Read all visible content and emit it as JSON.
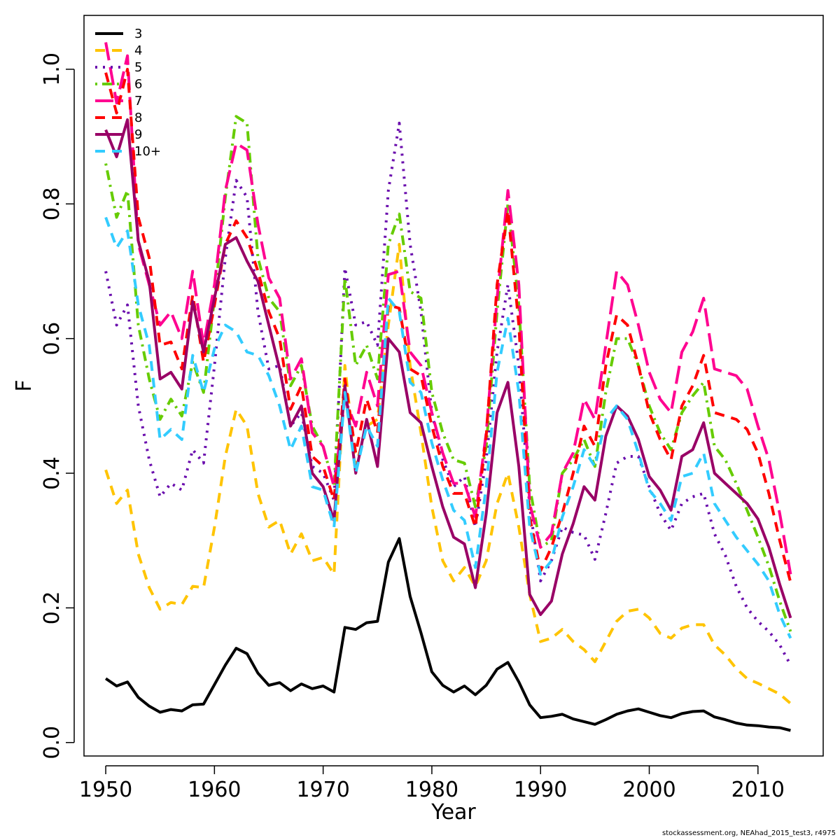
{
  "chart_data": {
    "type": "line",
    "xlabel": "Year",
    "ylabel": "F",
    "xlim": [
      1948,
      2016
    ],
    "ylim": [
      -0.02,
      1.08
    ],
    "xticks": [
      1950,
      1960,
      1970,
      1980,
      1990,
      2000,
      2010
    ],
    "yticks": [
      0.0,
      0.2,
      0.4,
      0.6,
      0.8,
      1.0
    ],
    "xtick_labels": [
      "1950",
      "1960",
      "1970",
      "1980",
      "1990",
      "2000",
      "2010"
    ],
    "ytick_labels": [
      "0.0",
      "0.2",
      "0.4",
      "0.6",
      "0.8",
      "1.0"
    ],
    "grid": false,
    "legend_position": "top-left",
    "x": [
      1950,
      1951,
      1952,
      1953,
      1954,
      1955,
      1956,
      1957,
      1958,
      1959,
      1960,
      1961,
      1962,
      1963,
      1964,
      1965,
      1966,
      1967,
      1968,
      1969,
      1970,
      1971,
      1972,
      1973,
      1974,
      1975,
      1976,
      1977,
      1978,
      1979,
      1980,
      1981,
      1982,
      1983,
      1984,
      1985,
      1986,
      1987,
      1988,
      1989,
      1990,
      1991,
      1992,
      1993,
      1994,
      1995,
      1996,
      1997,
      1998,
      1999,
      2000,
      2001,
      2002,
      2003,
      2004,
      2005,
      2006,
      2007,
      2008,
      2009,
      2010,
      2011,
      2012,
      2013
    ],
    "series": [
      {
        "name": "3",
        "color": "#000000",
        "dash": "solid",
        "values": [
          0.095,
          0.084,
          0.09,
          0.067,
          0.054,
          0.045,
          0.049,
          0.047,
          0.056,
          0.057,
          0.086,
          0.115,
          0.14,
          0.132,
          0.103,
          0.085,
          0.089,
          0.077,
          0.087,
          0.08,
          0.084,
          0.075,
          0.171,
          0.168,
          0.178,
          0.18,
          0.268,
          0.303,
          0.217,
          0.163,
          0.105,
          0.085,
          0.075,
          0.084,
          0.071,
          0.085,
          0.109,
          0.119,
          0.09,
          0.056,
          0.037,
          0.039,
          0.042,
          0.035,
          0.031,
          0.027,
          0.034,
          0.042,
          0.047,
          0.05,
          0.045,
          0.04,
          0.037,
          0.043,
          0.046,
          0.047,
          0.038,
          0.034,
          0.029,
          0.026,
          0.025,
          0.023,
          0.022,
          0.018
        ]
      },
      {
        "name": "4",
        "color": "#ffc400",
        "dash": "dashed",
        "values": [
          0.405,
          0.355,
          0.375,
          0.28,
          0.23,
          0.198,
          0.208,
          0.205,
          0.232,
          0.23,
          0.32,
          0.425,
          0.495,
          0.47,
          0.37,
          0.32,
          0.33,
          0.28,
          0.31,
          0.27,
          0.275,
          0.25,
          0.56,
          0.41,
          0.47,
          0.48,
          0.62,
          0.74,
          0.56,
          0.46,
          0.35,
          0.27,
          0.24,
          0.26,
          0.232,
          0.27,
          0.355,
          0.4,
          0.32,
          0.22,
          0.15,
          0.155,
          0.168,
          0.15,
          0.138,
          0.12,
          0.15,
          0.18,
          0.195,
          0.198,
          0.185,
          0.162,
          0.155,
          0.17,
          0.175,
          0.175,
          0.145,
          0.13,
          0.11,
          0.095,
          0.088,
          0.08,
          0.072,
          0.058
        ]
      },
      {
        "name": "5",
        "color": "#6a0dad",
        "dash": "dotted",
        "values": [
          0.7,
          0.62,
          0.65,
          0.5,
          0.42,
          0.365,
          0.385,
          0.375,
          0.435,
          0.415,
          0.56,
          0.72,
          0.835,
          0.81,
          0.64,
          0.555,
          0.56,
          0.47,
          0.49,
          0.41,
          0.4,
          0.36,
          0.705,
          0.62,
          0.625,
          0.59,
          0.82,
          0.92,
          0.74,
          0.64,
          0.49,
          0.42,
          0.38,
          0.395,
          0.32,
          0.42,
          0.58,
          0.68,
          0.56,
          0.35,
          0.24,
          0.27,
          0.32,
          0.312,
          0.308,
          0.272,
          0.34,
          0.415,
          0.425,
          0.425,
          0.38,
          0.34,
          0.315,
          0.355,
          0.365,
          0.37,
          0.31,
          0.278,
          0.232,
          0.2,
          0.18,
          0.165,
          0.145,
          0.115
        ]
      },
      {
        "name": "6",
        "color": "#66cc00",
        "dash": "dotdash",
        "values": [
          0.86,
          0.78,
          0.82,
          0.62,
          0.54,
          0.48,
          0.51,
          0.485,
          0.565,
          0.52,
          0.66,
          0.81,
          0.93,
          0.92,
          0.72,
          0.66,
          0.64,
          0.53,
          0.56,
          0.47,
          0.44,
          0.38,
          0.69,
          0.56,
          0.59,
          0.54,
          0.74,
          0.785,
          0.67,
          0.66,
          0.52,
          0.46,
          0.42,
          0.415,
          0.35,
          0.44,
          0.64,
          0.8,
          0.65,
          0.38,
          0.29,
          0.3,
          0.4,
          0.42,
          0.45,
          0.41,
          0.52,
          0.6,
          0.6,
          0.56,
          0.5,
          0.46,
          0.435,
          0.49,
          0.515,
          0.535,
          0.44,
          0.42,
          0.385,
          0.345,
          0.305,
          0.262,
          0.21,
          0.165
        ]
      },
      {
        "name": "7",
        "color": "#ff0090",
        "dash": "longdash",
        "values": [
          1.04,
          0.95,
          1.02,
          0.74,
          0.68,
          0.62,
          0.64,
          0.6,
          0.7,
          0.59,
          0.68,
          0.82,
          0.89,
          0.88,
          0.77,
          0.69,
          0.66,
          0.54,
          0.57,
          0.46,
          0.44,
          0.38,
          0.51,
          0.47,
          0.55,
          0.5,
          0.695,
          0.7,
          0.58,
          0.56,
          0.49,
          0.43,
          0.385,
          0.385,
          0.335,
          0.46,
          0.66,
          0.82,
          0.68,
          0.355,
          0.29,
          0.31,
          0.4,
          0.43,
          0.51,
          0.48,
          0.59,
          0.7,
          0.68,
          0.62,
          0.55,
          0.51,
          0.49,
          0.58,
          0.61,
          0.66,
          0.555,
          0.55,
          0.545,
          0.525,
          0.47,
          0.42,
          0.34,
          0.25
        ]
      },
      {
        "name": "8",
        "color": "#ff0000",
        "dash": "dashed",
        "values": [
          0.995,
          0.935,
          1.0,
          0.78,
          0.72,
          0.59,
          0.595,
          0.555,
          0.665,
          0.565,
          0.65,
          0.74,
          0.775,
          0.75,
          0.7,
          0.64,
          0.6,
          0.495,
          0.53,
          0.425,
          0.41,
          0.36,
          0.54,
          0.43,
          0.51,
          0.46,
          0.65,
          0.645,
          0.555,
          0.545,
          0.47,
          0.41,
          0.37,
          0.37,
          0.32,
          0.455,
          0.68,
          0.79,
          0.62,
          0.335,
          0.255,
          0.29,
          0.34,
          0.4,
          0.47,
          0.44,
          0.56,
          0.635,
          0.62,
          0.56,
          0.49,
          0.45,
          0.42,
          0.5,
          0.53,
          0.575,
          0.49,
          0.485,
          0.48,
          0.465,
          0.43,
          0.37,
          0.3,
          0.238
        ]
      },
      {
        "name": "9",
        "color": "#990066",
        "dash": "solid",
        "values": [
          0.91,
          0.87,
          0.925,
          0.745,
          0.685,
          0.54,
          0.55,
          0.525,
          0.655,
          0.58,
          0.66,
          0.74,
          0.75,
          0.715,
          0.685,
          0.62,
          0.555,
          0.47,
          0.5,
          0.4,
          0.38,
          0.33,
          0.53,
          0.4,
          0.48,
          0.41,
          0.6,
          0.58,
          0.49,
          0.475,
          0.41,
          0.35,
          0.305,
          0.295,
          0.23,
          0.34,
          0.49,
          0.535,
          0.41,
          0.22,
          0.19,
          0.21,
          0.28,
          0.325,
          0.38,
          0.36,
          0.455,
          0.5,
          0.485,
          0.45,
          0.395,
          0.375,
          0.345,
          0.425,
          0.435,
          0.475,
          0.4,
          0.385,
          0.37,
          0.355,
          0.332,
          0.29,
          0.235,
          0.185
        ]
      },
      {
        "name": "10+",
        "color": "#33ccff",
        "dash": "dashed",
        "values": [
          0.78,
          0.735,
          0.76,
          0.65,
          0.59,
          0.45,
          0.465,
          0.45,
          0.575,
          0.52,
          0.585,
          0.62,
          0.61,
          0.58,
          0.575,
          0.545,
          0.5,
          0.435,
          0.47,
          0.38,
          0.375,
          0.32,
          0.52,
          0.4,
          0.47,
          0.44,
          0.66,
          0.64,
          0.535,
          0.52,
          0.445,
          0.39,
          0.345,
          0.33,
          0.26,
          0.38,
          0.55,
          0.63,
          0.52,
          0.32,
          0.25,
          0.27,
          0.335,
          0.38,
          0.435,
          0.41,
          0.48,
          0.5,
          0.48,
          0.43,
          0.375,
          0.355,
          0.33,
          0.395,
          0.4,
          0.43,
          0.355,
          0.33,
          0.305,
          0.285,
          0.265,
          0.24,
          0.19,
          0.155
        ]
      }
    ]
  },
  "caption": "stockassessment.org, NEAhad_2015_test3, r4975"
}
